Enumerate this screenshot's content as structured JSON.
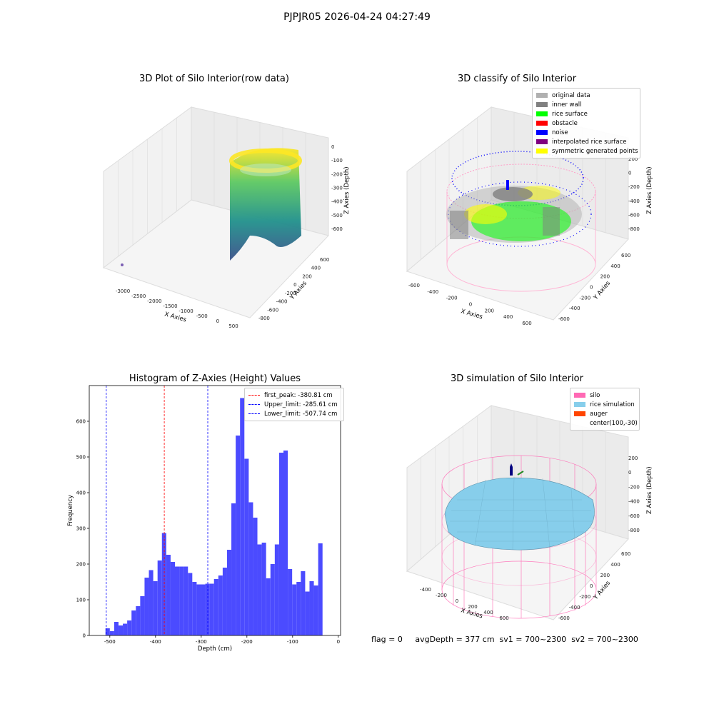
{
  "suptitle": "PJPJR05 2026-04-24 04:27:49",
  "footer": "flag = 0     avgDepth = 377 cm  sv1 = 700~2300  sv2 = 700~2300",
  "chart_data": [
    {
      "type": "scatter",
      "projection": "3d",
      "title": "3D Plot of Silo Interior(row data)",
      "xlabel": "X Axies",
      "ylabel": "Y Axies",
      "zlabel": "Z Axies (Depth)",
      "xticks": [
        "-3000",
        "-2500",
        "-2000",
        "-1500",
        "-1000",
        "-500",
        "0",
        "500"
      ],
      "yticks": [
        "-800",
        "-600",
        "-400",
        "-200",
        "0",
        "200",
        "400",
        "600"
      ],
      "zticks": [
        "0",
        "-100",
        "-200",
        "-300",
        "-400",
        "-500",
        "-600"
      ],
      "colormap": "viridis"
    },
    {
      "type": "scatter",
      "projection": "3d",
      "title": "3D classify of Silo Interior",
      "xlabel": "X Axies",
      "ylabel": "Y Axies",
      "zlabel": "Z Axies (Depth)",
      "xticks": [
        "-600",
        "-400",
        "-200",
        "0",
        "200",
        "400",
        "600"
      ],
      "yticks": [
        "-600",
        "-400",
        "-200",
        "0",
        "200",
        "400",
        "600"
      ],
      "zticks": [
        "200",
        "0",
        "-200",
        "-400",
        "-600",
        "-800"
      ],
      "legend_position": "top-right",
      "legend": [
        {
          "label": "original data",
          "color": "#b0b0b0"
        },
        {
          "label": "inner wall",
          "color": "#808080"
        },
        {
          "label": "rice surface",
          "color": "#00ff00"
        },
        {
          "label": "obstacle",
          "color": "#ff0000"
        },
        {
          "label": "noise",
          "color": "#0000ff"
        },
        {
          "label": "interpolated rice surface",
          "color": "#800080"
        },
        {
          "label": "symmetric generated points",
          "color": "#ffff00"
        }
      ]
    },
    {
      "type": "bar",
      "title": "Histogram of Z-Axies (Height) Values",
      "xlabel": "Depth (cm)",
      "ylabel": "Frequency",
      "xlim": [
        -545,
        5
      ],
      "ylim": [
        0,
        700
      ],
      "bin_width": 9.5,
      "bar_color": "#4b4bff",
      "xticks": [
        -500,
        -400,
        -300,
        -200,
        -100,
        0
      ],
      "yticks": [
        0,
        100,
        200,
        300,
        400,
        500,
        600
      ],
      "bins_left": [
        -509.5,
        -500,
        -490.5,
        -481,
        -471.5,
        -462,
        -452.5,
        -443,
        -433.5,
        -424,
        -414.5,
        -405,
        -395.5,
        -386,
        -376.5,
        -367,
        -357.5,
        -348,
        -338.5,
        -329,
        -319.5,
        -310,
        -300.5,
        -291,
        -281.5,
        -272,
        -262.5,
        -253,
        -243.5,
        -234,
        -224.5,
        -215,
        -205.5,
        -196,
        -186.5,
        -177,
        -167.5,
        -158,
        -148.5,
        -139,
        -129.5,
        -120,
        -110.5,
        -101,
        -91.5,
        -82,
        -72.5,
        -63,
        -53.5,
        -44,
        -34.5,
        -25,
        -15.5,
        -6
      ],
      "values": [
        20,
        12,
        38,
        28,
        33,
        42,
        70,
        82,
        110,
        162,
        183,
        152,
        210,
        287,
        226,
        206,
        193,
        193,
        193,
        175,
        150,
        143,
        143,
        145,
        145,
        158,
        168,
        190,
        240,
        370,
        560,
        665,
        495,
        373,
        330,
        255,
        260,
        160,
        200,
        255,
        512,
        518,
        186,
        143,
        150,
        180,
        123,
        152,
        140,
        258,
        0,
        0,
        0,
        0
      ],
      "lines": [
        {
          "label": "first_peak: -380.81 cm",
          "x": -380.81,
          "color": "#ff0000"
        },
        {
          "label": "Upper_limit: -285.61 cm",
          "x": -285.61,
          "color": "#0000ff"
        },
        {
          "label": "Lower_limit: -507.74 cm",
          "x": -507.74,
          "color": "#0000ff"
        }
      ],
      "legend_position": "top-right"
    },
    {
      "type": "scatter",
      "projection": "3d",
      "title": "3D simulation of Silo Interior",
      "xlabel": "X Axies",
      "ylabel": "Y Axies",
      "zlabel": "Z Axies (Depth)",
      "xticks": [
        "-400",
        "-200",
        "0",
        "200",
        "400",
        "600"
      ],
      "yticks": [
        "-600",
        "-400",
        "-200",
        "0",
        "200",
        "400",
        "600"
      ],
      "zticks": [
        "200",
        "0",
        "-200",
        "-400",
        "-600",
        "-800"
      ],
      "legend_position": "top-right",
      "legend": [
        {
          "label": "silo",
          "color": "#ff69b4"
        },
        {
          "label": "rice simulation",
          "color": "#87ceeb"
        },
        {
          "label": "auger",
          "color": "#ff4500"
        },
        {
          "label": "center(100,-30)",
          "color": ""
        }
      ]
    }
  ]
}
